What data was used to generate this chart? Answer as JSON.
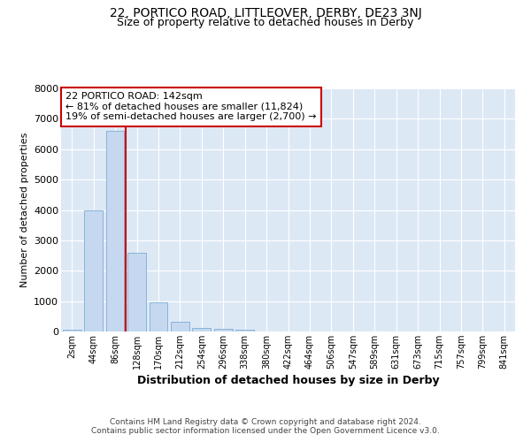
{
  "title_line1": "22, PORTICO ROAD, LITTLEOVER, DERBY, DE23 3NJ",
  "title_line2": "Size of property relative to detached houses in Derby",
  "xlabel": "Distribution of detached houses by size in Derby",
  "ylabel": "Number of detached properties",
  "bar_labels": [
    "2sqm",
    "44sqm",
    "86sqm",
    "128sqm",
    "170sqm",
    "212sqm",
    "254sqm",
    "296sqm",
    "338sqm",
    "380sqm",
    "422sqm",
    "464sqm",
    "506sqm",
    "547sqm",
    "589sqm",
    "631sqm",
    "673sqm",
    "715sqm",
    "757sqm",
    "799sqm",
    "841sqm"
  ],
  "bar_values": [
    70,
    4000,
    6600,
    2600,
    950,
    330,
    130,
    80,
    60,
    0,
    0,
    0,
    0,
    0,
    0,
    0,
    0,
    0,
    0,
    0,
    0
  ],
  "bar_color": "#c5d8f0",
  "bar_edge_color": "#7aadd4",
  "vline_color": "#cc0000",
  "vline_pos": 2.5,
  "ylim": [
    0,
    8000
  ],
  "yticks": [
    0,
    1000,
    2000,
    3000,
    4000,
    5000,
    6000,
    7000,
    8000
  ],
  "annotation_title": "22 PORTICO ROAD: 142sqm",
  "annotation_line2": "← 81% of detached houses are smaller (11,824)",
  "annotation_line3": "19% of semi-detached houses are larger (2,700) →",
  "annotation_box_color": "#ffffff",
  "annotation_box_edge_color": "#cc0000",
  "footer_line1": "Contains HM Land Registry data © Crown copyright and database right 2024.",
  "footer_line2": "Contains public sector information licensed under the Open Government Licence v3.0.",
  "plot_bg_color": "#dde8f5",
  "fig_bg_color": "#ffffff",
  "grid_color": "#ffffff",
  "title1_fontsize": 10,
  "title2_fontsize": 9,
  "ylabel_fontsize": 8,
  "xlabel_fontsize": 9,
  "tick_fontsize": 7,
  "ytick_fontsize": 8,
  "annotation_fontsize": 8,
  "footer_fontsize": 6.5
}
